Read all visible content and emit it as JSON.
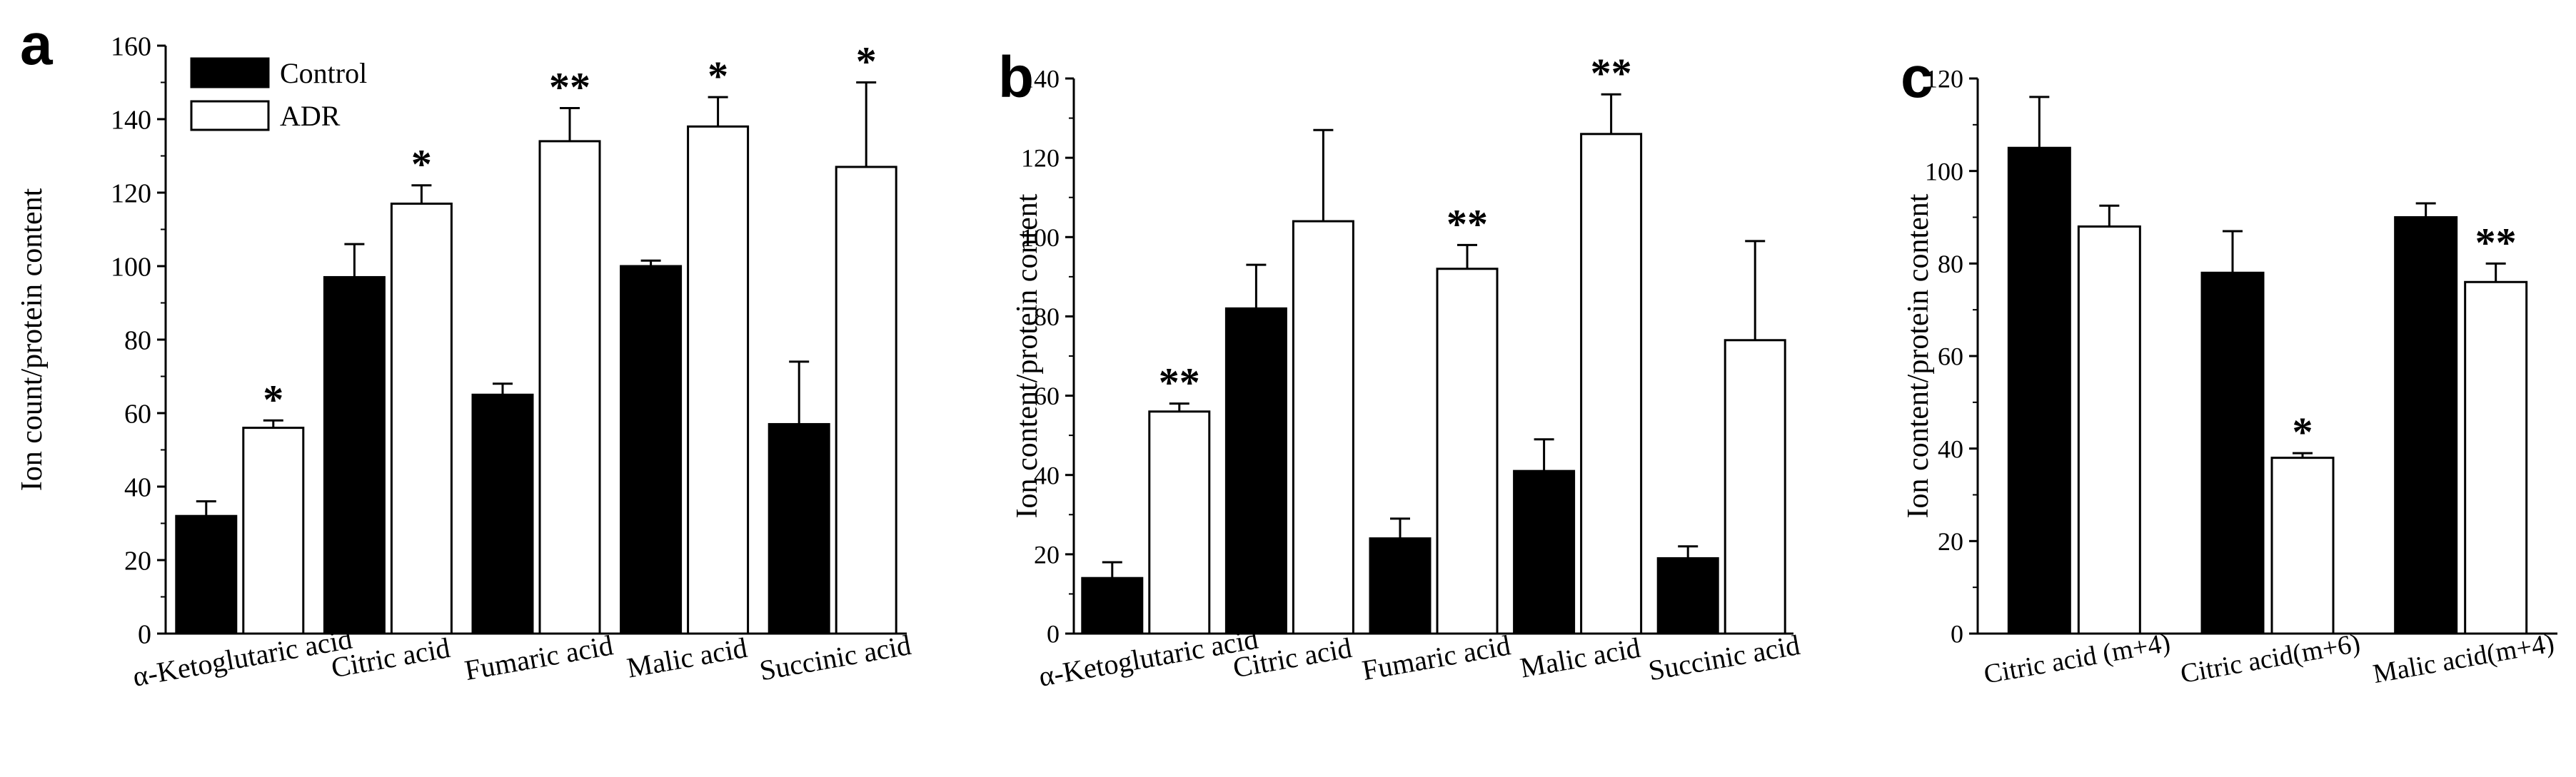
{
  "legend": {
    "items": [
      {
        "label": "Control",
        "fill": "#000000"
      },
      {
        "label": "ADR",
        "fill": "#ffffff"
      }
    ]
  },
  "colors": {
    "control": "#000000",
    "adr": "#ffffff",
    "axis": "#000000"
  },
  "chart_data": [
    {
      "type": "bar",
      "panel": "a",
      "ylabel": "Ion count/protein content",
      "ylim": [
        0,
        160
      ],
      "yticks": [
        0,
        20,
        40,
        60,
        80,
        100,
        120,
        140,
        160
      ],
      "categories": [
        "α-Ketoglutaric acid",
        "Citric acid",
        "Fumaric acid",
        "Malic acid",
        "Succinic acid"
      ],
      "series": [
        {
          "name": "Control",
          "values": [
            32,
            97,
            65,
            100,
            57
          ],
          "errors": [
            4,
            9,
            3,
            1.5,
            17
          ]
        },
        {
          "name": "ADR",
          "values": [
            56,
            117,
            134,
            138,
            127
          ],
          "errors": [
            2,
            5,
            9,
            8,
            23
          ]
        }
      ],
      "annotations": [
        "*",
        "*",
        "**",
        "*",
        "*"
      ],
      "legend_position": "top-left"
    },
    {
      "type": "bar",
      "panel": "b",
      "ylabel": "Ion content/protein content",
      "ylim": [
        0,
        140
      ],
      "yticks": [
        0,
        20,
        40,
        60,
        80,
        100,
        120,
        140
      ],
      "categories": [
        "α-Ketoglutaric acid",
        "Citric acid",
        "Fumaric acid",
        "Malic acid",
        "Succinic acid"
      ],
      "series": [
        {
          "name": "Control",
          "values": [
            14,
            82,
            24,
            41,
            19
          ],
          "errors": [
            4,
            11,
            5,
            8,
            3
          ]
        },
        {
          "name": "ADR",
          "values": [
            56,
            104,
            92,
            126,
            74
          ],
          "errors": [
            2,
            23,
            6,
            10,
            25
          ]
        }
      ],
      "annotations": [
        "**",
        "",
        "**",
        "**",
        ""
      ]
    },
    {
      "type": "bar",
      "panel": "c",
      "ylabel": "Ion content/protein content",
      "ylim": [
        0,
        120
      ],
      "yticks": [
        0,
        20,
        40,
        60,
        80,
        100,
        120
      ],
      "categories": [
        "Citric acid (m+4)",
        "Citric acid(m+6)",
        "Malic acid(m+4)"
      ],
      "series": [
        {
          "name": "Control",
          "values": [
            105,
            78,
            90
          ],
          "errors": [
            11,
            9,
            3
          ]
        },
        {
          "name": "ADR",
          "values": [
            88,
            38,
            76
          ],
          "errors": [
            4.5,
            1,
            4
          ]
        }
      ],
      "annotations": [
        "",
        "*",
        "**"
      ]
    }
  ]
}
